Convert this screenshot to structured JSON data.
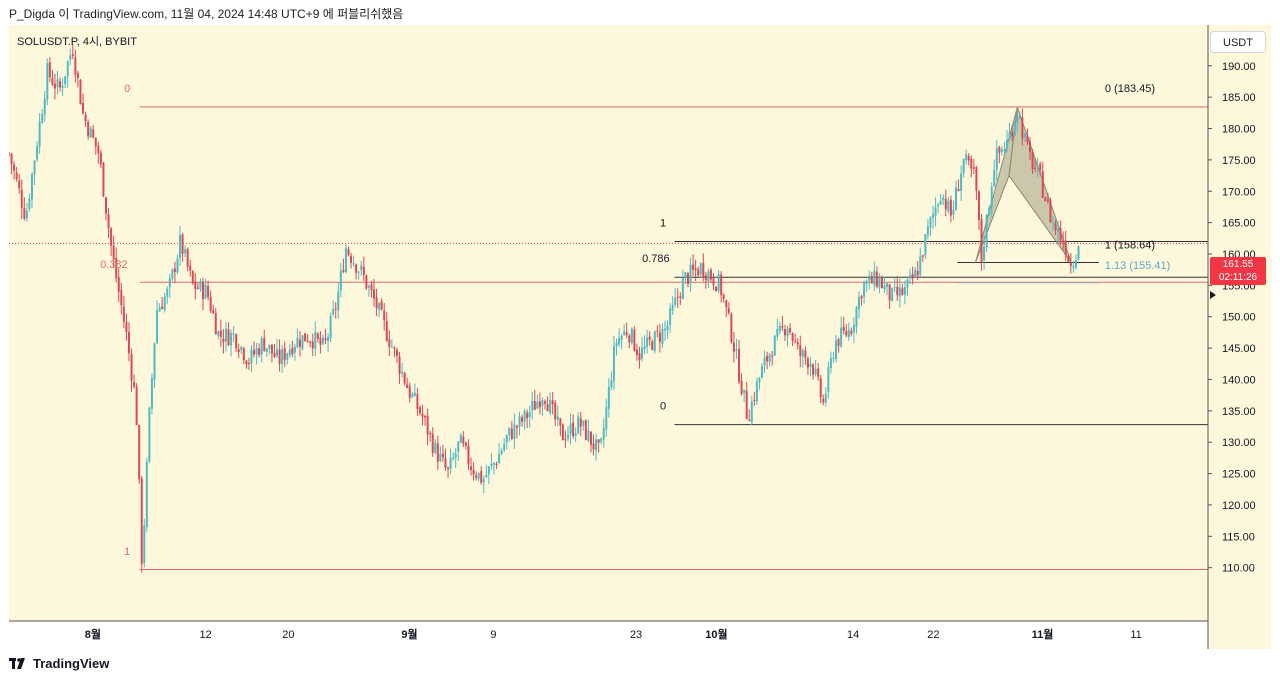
{
  "header": {
    "text": "P_Digda 이 TradingView.com, 11월 04, 2024 14:48 UTC+9 에 퍼블리쉬했음"
  },
  "symbol": "SOLUSDT.P, 4시, BYBIT",
  "currency": "USDT",
  "footer": {
    "brand": "TradingView"
  },
  "price_tag": {
    "price": "161.55",
    "countdown": "02:11:26"
  },
  "chart_data": {
    "type": "candlestick",
    "title": "SOLUSDT.P, 4시, BYBIT",
    "yaxis": {
      "range": [
        101.5,
        196.5
      ],
      "ticks": [
        190,
        185,
        180,
        175,
        170,
        165,
        160,
        155,
        150,
        145,
        140,
        135,
        130,
        125,
        120,
        115,
        110
      ],
      "tick_labels": [
        "190.00",
        "185.00",
        "180.00",
        "175.00",
        "170.00",
        "165.00",
        "160.00",
        "155.00",
        "150.00",
        "145.00",
        "140.00",
        "135.00",
        "130.00",
        "125.00",
        "120.00",
        "115.00",
        "110.00"
      ]
    },
    "xaxis": {
      "range": [
        0,
        100
      ],
      "ticks": [
        {
          "label": "8월",
          "x": 7.0,
          "bold": true
        },
        {
          "label": "12",
          "x": 16.4,
          "bold": false
        },
        {
          "label": "20",
          "x": 23.3,
          "bold": false
        },
        {
          "label": "9월",
          "x": 33.4,
          "bold": true
        },
        {
          "label": "9",
          "x": 40.4,
          "bold": false
        },
        {
          "label": "23",
          "x": 52.3,
          "bold": false
        },
        {
          "label": "10월",
          "x": 59.0,
          "bold": true
        },
        {
          "label": "14",
          "x": 70.4,
          "bold": false
        },
        {
          "label": "22",
          "x": 77.1,
          "bold": false
        },
        {
          "label": "11월",
          "x": 86.2,
          "bold": true
        },
        {
          "label": "11",
          "x": 94.0,
          "bold": false
        }
      ]
    },
    "up_color": "#4fb9c4",
    "down_color": "#d94a56",
    "path": [
      [
        0,
        176
      ],
      [
        1.4,
        166
      ],
      [
        3.2,
        189
      ],
      [
        4.2,
        186
      ],
      [
        5.3,
        193
      ],
      [
        6.2,
        182
      ],
      [
        7.5,
        176
      ],
      [
        8.6,
        160
      ],
      [
        9.8,
        147
      ],
      [
        10.6,
        136
      ],
      [
        11.1,
        110
      ],
      [
        11.7,
        134
      ],
      [
        12.3,
        151
      ],
      [
        13.3,
        154
      ],
      [
        14.3,
        162
      ],
      [
        15.3,
        155
      ],
      [
        16.5,
        154
      ],
      [
        17.5,
        147
      ],
      [
        18.8,
        147
      ],
      [
        20,
        143
      ],
      [
        21.2,
        146
      ],
      [
        22.5,
        143
      ],
      [
        23.8,
        146
      ],
      [
        25,
        147
      ],
      [
        26.3,
        145
      ],
      [
        27.3,
        152
      ],
      [
        28.1,
        161
      ],
      [
        29.4,
        157
      ],
      [
        30.6,
        152
      ],
      [
        31.8,
        146
      ],
      [
        33.4,
        138
      ],
      [
        34.5,
        134
      ],
      [
        35.5,
        129
      ],
      [
        36.6,
        125
      ],
      [
        37.6,
        130
      ],
      [
        38.6,
        126
      ],
      [
        39.5,
        124
      ],
      [
        40.6,
        127
      ],
      [
        41.6,
        131
      ],
      [
        43.1,
        134
      ],
      [
        44.6,
        138
      ],
      [
        46.1,
        131
      ],
      [
        47.6,
        133
      ],
      [
        49.3,
        128
      ],
      [
        50.6,
        146
      ],
      [
        51.6,
        148
      ],
      [
        52.6,
        144
      ],
      [
        53.6,
        146
      ],
      [
        54.8,
        148
      ],
      [
        56.3,
        156
      ],
      [
        57.8,
        158
      ],
      [
        59.3,
        155
      ],
      [
        60.3,
        147
      ],
      [
        61.1,
        139
      ],
      [
        61.6,
        134
      ],
      [
        62.7,
        141
      ],
      [
        63.6,
        145
      ],
      [
        64.9,
        149
      ],
      [
        65.9,
        144
      ],
      [
        66.9,
        143
      ],
      [
        67.9,
        136
      ],
      [
        68.9,
        146
      ],
      [
        70.2,
        148
      ],
      [
        71.2,
        155
      ],
      [
        72.5,
        156
      ],
      [
        73.6,
        153
      ],
      [
        74.7,
        154
      ],
      [
        75.7,
        157
      ],
      [
        76.7,
        164
      ],
      [
        77.7,
        170
      ],
      [
        78.6,
        166
      ],
      [
        79.6,
        175
      ],
      [
        80.6,
        172
      ],
      [
        81.1,
        159
      ],
      [
        82.2,
        175
      ],
      [
        83.3,
        178
      ],
      [
        84.1,
        183
      ],
      [
        85.0,
        176
      ],
      [
        86.0,
        172
      ],
      [
        87.0,
        165
      ],
      [
        88.0,
        162
      ],
      [
        88.6,
        158
      ],
      [
        89.2,
        162
      ]
    ],
    "series": [
      {
        "name": "SOLUSDT.P",
        "last": 161.55
      }
    ],
    "horizontal_lines": [
      {
        "y": 161.7,
        "x1": 0,
        "x2": 100,
        "style": "dotted",
        "color": "#f23645",
        "name": "current price"
      },
      {
        "y": 183.45,
        "x1": 10.9,
        "x2": 100,
        "style": "solid",
        "color": "#e06a6a",
        "name": "fib 0"
      },
      {
        "y": 155.5,
        "x1": 10.9,
        "x2": 100,
        "style": "solid",
        "color": "#e06a6a",
        "name": "fib 0.382"
      },
      {
        "y": 109.7,
        "x1": 10.9,
        "x2": 100,
        "style": "solid",
        "color": "#e06a6a",
        "name": "fib 1"
      },
      {
        "y": 162.0,
        "x1": 55.5,
        "x2": 100,
        "style": "solid",
        "color": "#333333",
        "name": "fib2 1"
      },
      {
        "y": 156.3,
        "x1": 55.5,
        "x2": 100,
        "style": "solid",
        "color": "#333333",
        "name": "fib2 0.786"
      },
      {
        "y": 132.8,
        "x1": 55.5,
        "x2": 100,
        "style": "solid",
        "color": "#333333",
        "name": "fib2 0"
      },
      {
        "y": 158.64,
        "x1": 79.1,
        "x2": 90.9,
        "style": "solid",
        "color": "#333333",
        "name": "ext 1"
      },
      {
        "y": 155.41,
        "x1": 79.1,
        "x2": 90.9,
        "style": "solid",
        "color": "#9ab3c2",
        "name": "ext 1.13"
      }
    ],
    "annotations": [
      {
        "text": "0",
        "x": 9.6,
        "y": 185.8,
        "color": "#e06a6a",
        "anchor": "start"
      },
      {
        "text": "0.382",
        "x": 7.6,
        "y": 157.8,
        "color": "#e06a6a",
        "anchor": "start"
      },
      {
        "text": "1",
        "x": 9.6,
        "y": 112.0,
        "color": "#e06a6a",
        "anchor": "start"
      },
      {
        "text": "1",
        "x": 54.3,
        "y": 164.4,
        "color": "#131722",
        "anchor": "start"
      },
      {
        "text": "0.786",
        "x": 55.1,
        "y": 158.7,
        "color": "#131722",
        "anchor": "end"
      },
      {
        "text": "0",
        "x": 54.3,
        "y": 135.2,
        "color": "#131722",
        "anchor": "start"
      },
      {
        "text": "0 (183.45)",
        "x": 91.4,
        "y": 185.8,
        "color": "#131722",
        "anchor": "start"
      },
      {
        "text": "1 (158.64)",
        "x": 91.4,
        "y": 160.9,
        "color": "#131722",
        "anchor": "start"
      },
      {
        "text": "1.13 (155.41)",
        "x": 91.4,
        "y": 157.6,
        "color": "#5aa9c9",
        "anchor": "start"
      }
    ],
    "pattern": {
      "points": [
        [
          80.6,
          158.6
        ],
        [
          84.1,
          183.4
        ],
        [
          83.4,
          172.5
        ],
        [
          88.6,
          158.6
        ]
      ],
      "fill": "#8b8b70",
      "name": "harmonic pattern"
    }
  }
}
